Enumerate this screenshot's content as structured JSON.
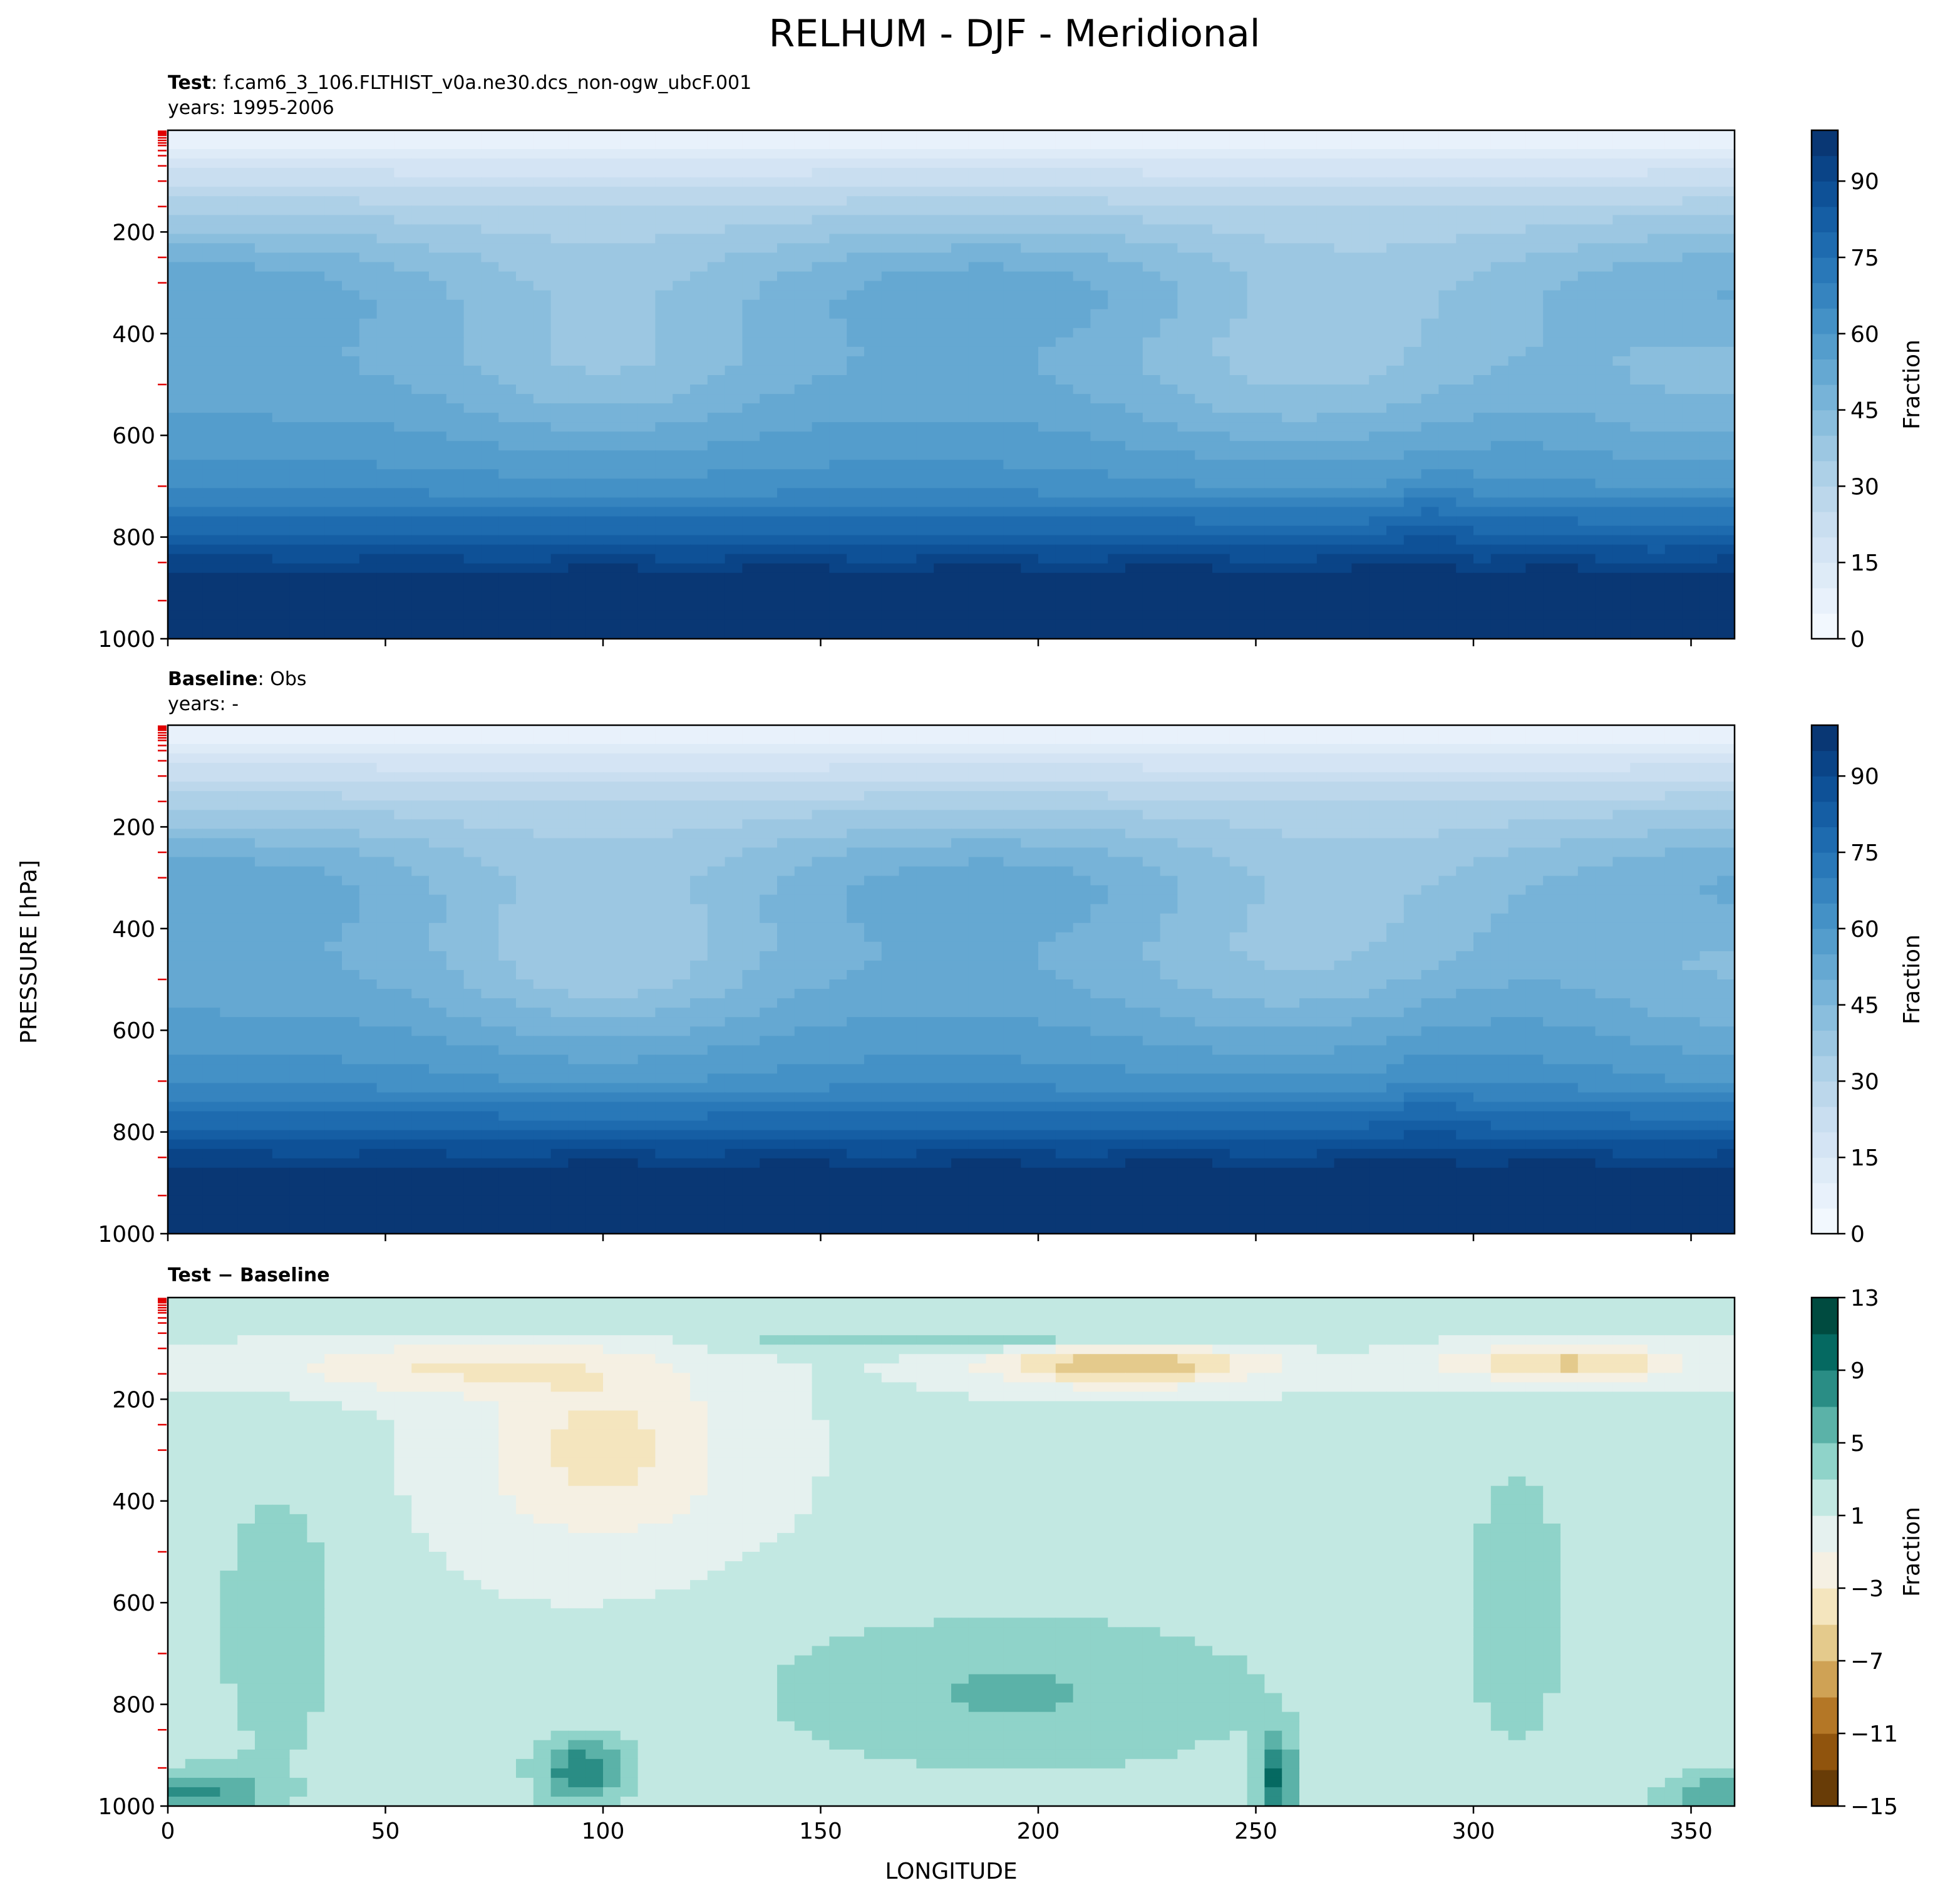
{
  "chart_data": {
    "type": "heatmap",
    "title": "RELHUM - DJF - Meridional",
    "xlabel": "LONGITUDE",
    "ylabel": "PRESSURE [hPa]",
    "xlim": [
      0,
      360
    ],
    "ylim": [
      1000,
      0
    ],
    "x_ticks": [
      "0",
      "50",
      "100",
      "150",
      "200",
      "250",
      "300",
      "350"
    ],
    "y_ticks": [
      "200",
      "400",
      "600",
      "800",
      "1000"
    ],
    "panels": [
      {
        "id": "test",
        "title_label": "Test",
        "title_sep": ": ",
        "title_value": "f.cam6_3_106.FLTHIST_v0a.ne30.dcs_non-ogw_ubcF.001",
        "years": "years: 1995-2006",
        "colormap": "Blues",
        "colorbar_label": "Fraction",
        "colorbar_ticks": [
          "0",
          "15",
          "30",
          "45",
          "60",
          "75",
          "90"
        ],
        "colorbar_range": [
          0,
          100
        ]
      },
      {
        "id": "baseline",
        "title_label": "Baseline",
        "title_sep": ": ",
        "title_value": "Obs",
        "years": "years: -",
        "colormap": "Blues",
        "colorbar_label": "Fraction",
        "colorbar_ticks": [
          "0",
          "15",
          "30",
          "45",
          "60",
          "75",
          "90"
        ],
        "colorbar_range": [
          0,
          100
        ]
      },
      {
        "id": "diff",
        "title_label": "Test − Baseline",
        "title_sep": "",
        "title_value": "",
        "years": "",
        "colormap": "BrBG",
        "colorbar_label": "Fraction",
        "colorbar_ticks": [
          "−15",
          "−11",
          "−7",
          "−3",
          "1",
          "5",
          "9",
          "13"
        ],
        "colorbar_range": [
          -15,
          13
        ]
      }
    ],
    "colors": {
      "blues": [
        "#f7fbff",
        "#e3eef9",
        "#cfe1f2",
        "#b5d4e9",
        "#93c3df",
        "#6daed5",
        "#4b97c9",
        "#2f7ebc",
        "#1864aa",
        "#0a4a90",
        "#08306b"
      ],
      "brbg": [
        "#543005",
        "#8c510a",
        "#bf812d",
        "#dfc27d",
        "#f6e8c3",
        "#f5f5f5",
        "#c7eae5",
        "#80cdc1",
        "#35978f",
        "#01665e",
        "#003c30"
      ],
      "level_tick": "#e00000"
    }
  }
}
